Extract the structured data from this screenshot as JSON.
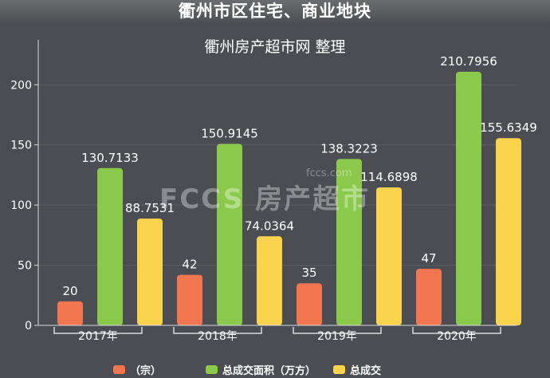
{
  "header": {
    "title": "衢州市区住宅、商业地块",
    "subtitle": "衢州房产超市网 整理"
  },
  "watermark": {
    "text": "FCCS 房产超市",
    "domain": "fccs.com"
  },
  "colors": {
    "background": "#4b4d52",
    "count": "#f2764f",
    "area": "#8bc94d",
    "amount": "#f9d24e",
    "axis": "#d9d9d9",
    "grid": "#5c5e63"
  },
  "chart_data": {
    "type": "bar",
    "title": "衢州市区住宅、商业地块",
    "subtitle": "衢州房产超市网 整理",
    "categories": [
      "2017年",
      "2018年",
      "2019年",
      "2020年"
    ],
    "series": [
      {
        "name": "（宗）",
        "values": [
          20,
          42,
          35,
          47
        ],
        "labels": [
          "20",
          "42",
          "35",
          "47"
        ]
      },
      {
        "name": "总成交面积（万方）",
        "values": [
          130.7133,
          150.9145,
          138.3223,
          210.7956
        ],
        "labels": [
          "130.7133",
          "150.9145",
          "138.3223",
          "210.7956"
        ]
      },
      {
        "name": "总成交",
        "values": [
          88.7531,
          74.0364,
          114.6898,
          155.6349
        ],
        "labels": [
          "88.7531",
          "74.0364",
          "114.6898",
          "155.6349"
        ]
      }
    ],
    "yticks": [
      "0",
      "50",
      "100",
      "150",
      "200"
    ],
    "ylim": [
      0,
      232
    ],
    "grid": true,
    "legend": "bottom"
  }
}
